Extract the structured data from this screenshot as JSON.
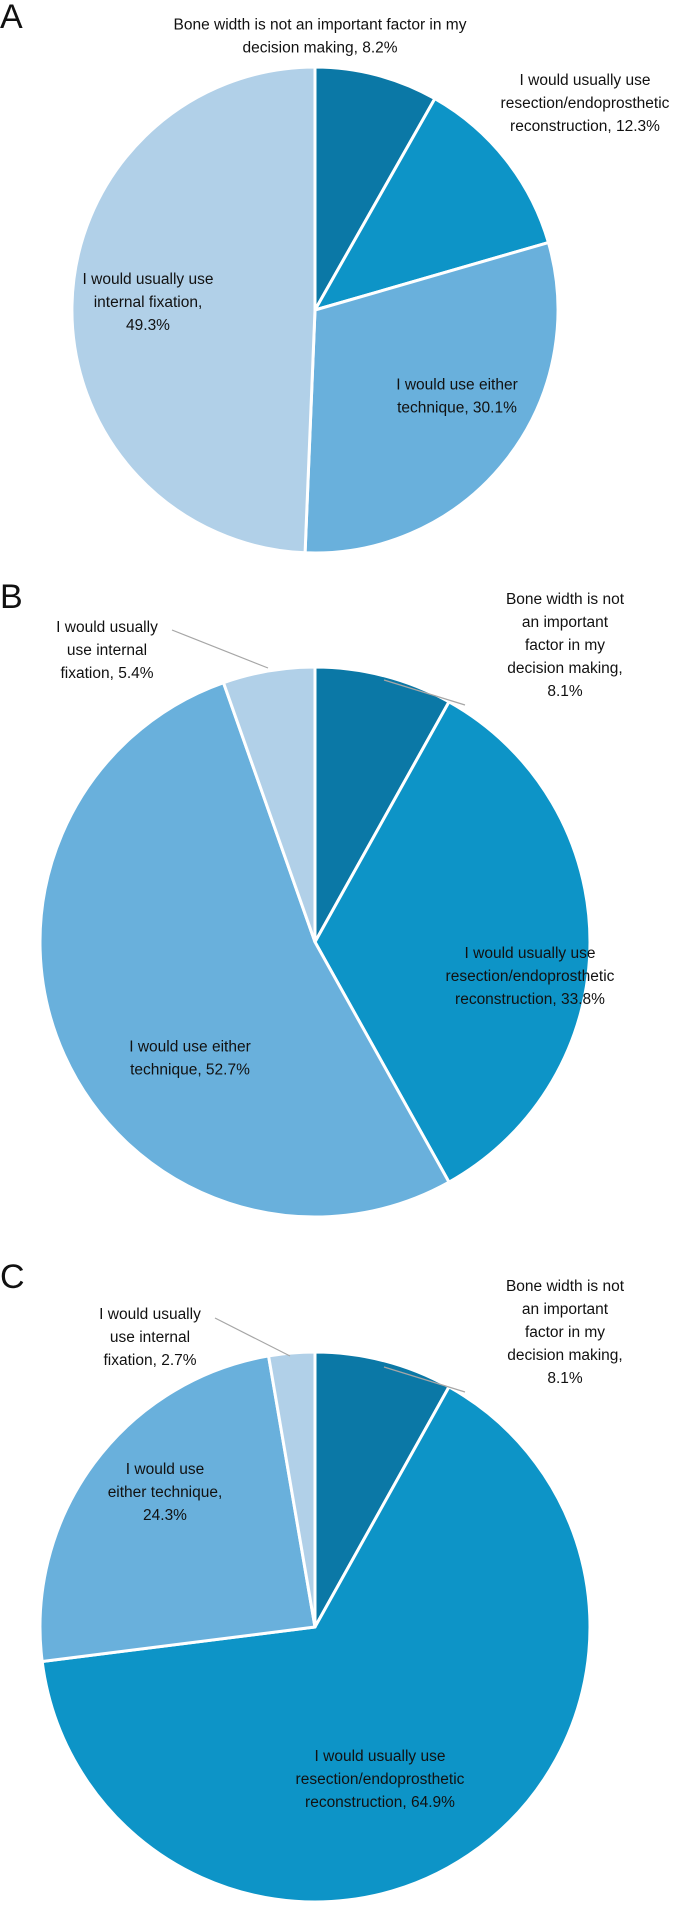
{
  "colors": {
    "bone_width": "#0b78a6",
    "resection": "#0d94c7",
    "either": "#69b0dc",
    "internal": "#b1d0e8",
    "leader": "#a6a6a6"
  },
  "chart_data": [
    {
      "panel": "A",
      "type": "pie",
      "slices": [
        {
          "key": "bone_width",
          "value": 8.2,
          "label_lines": [
            "Bone width is not an important factor in my",
            "decision making, 8.2%"
          ]
        },
        {
          "key": "resection",
          "value": 12.3,
          "label_lines": [
            "I would usually use",
            "resection/endoprosthetic",
            "reconstruction, 12.3%"
          ]
        },
        {
          "key": "either",
          "value": 30.1,
          "label_lines": [
            "I would use either",
            "technique, 30.1%"
          ]
        },
        {
          "key": "internal",
          "value": 49.3,
          "label_lines": [
            "I would usually use",
            "internal fixation,",
            "49.3%"
          ]
        }
      ]
    },
    {
      "panel": "B",
      "type": "pie",
      "slices": [
        {
          "key": "bone_width",
          "value": 8.1,
          "label_lines": [
            "Bone width is not",
            "an important",
            "factor in my",
            "decision making,",
            "8.1%"
          ]
        },
        {
          "key": "resection",
          "value": 33.8,
          "label_lines": [
            "I would usually use",
            "resection/endoprosthetic",
            "reconstruction, 33.8%"
          ]
        },
        {
          "key": "either",
          "value": 52.7,
          "label_lines": [
            "I would use either",
            "technique, 52.7%"
          ]
        },
        {
          "key": "internal",
          "value": 5.4,
          "label_lines": [
            "I would usually",
            "use internal",
            "fixation, 5.4%"
          ]
        }
      ]
    },
    {
      "panel": "C",
      "type": "pie",
      "slices": [
        {
          "key": "bone_width",
          "value": 8.1,
          "label_lines": [
            "Bone width is not",
            "an important",
            "factor in my",
            "decision making,",
            "8.1%"
          ]
        },
        {
          "key": "resection",
          "value": 64.9,
          "label_lines": [
            "I would usually use",
            "resection/endoprosthetic",
            "reconstruction, 64.9%"
          ]
        },
        {
          "key": "either",
          "value": 24.3,
          "label_lines": [
            "I would use",
            "either technique,",
            "24.3%"
          ]
        },
        {
          "key": "internal",
          "value": 2.7,
          "label_lines": [
            "I would usually",
            "use internal",
            "fixation, 2.7%"
          ]
        }
      ]
    }
  ]
}
